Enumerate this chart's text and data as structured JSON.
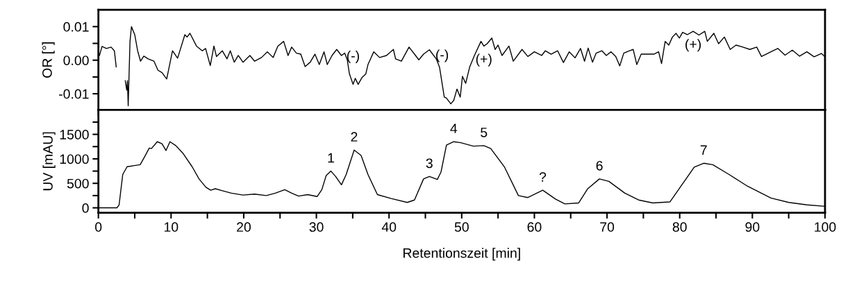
{
  "chart_data": [
    {
      "type": "line",
      "ylabel": "OR [°]",
      "xlim": [
        0,
        100
      ],
      "ylim": [
        -0.0148,
        0.015
      ],
      "xticks": [
        0,
        {
          "value": 5,
          "label": null
        },
        10,
        {
          "value": 15,
          "label": null
        },
        20,
        {
          "value": 25,
          "label": null
        },
        30,
        {
          "value": 35,
          "label": null
        },
        40,
        {
          "value": 45,
          "label": null
        },
        50,
        {
          "value": 55,
          "label": null
        },
        60,
        {
          "value": 65,
          "label": null
        },
        70,
        {
          "value": 75,
          "label": null
        },
        80,
        {
          "value": 85,
          "label": null
        },
        90,
        {
          "value": 95,
          "label": null
        },
        100
      ],
      "yticks": [
        {
          "value": -0.01,
          "label": "-0.01"
        },
        {
          "value": -0.005,
          "label": null
        },
        {
          "value": 0,
          "label": "0.00"
        },
        {
          "value": 0.005,
          "label": null
        },
        0.01
      ],
      "tick_labels": "y",
      "grid": false,
      "marker": "none",
      "line_style": "solid",
      "series": [
        {
          "color": "#000000",
          "x": [
            0.15,
            0.5,
            1.1,
            1.75,
            2.2,
            2.45,
            2.65,
            3.55,
            3.7,
            3.9,
            4.0,
            4.1,
            4.35,
            4.55,
            5.0,
            5.4,
            5.8,
            6.25,
            6.85,
            7.65,
            8.2,
            8.75,
            9.4,
            10.2,
            10.9,
            11.9,
            12.2,
            12.6,
            13.5,
            14.3,
            14.75,
            15.4,
            15.9,
            16.25,
            17.05,
            17.7,
            18.15,
            18.7,
            19.25,
            19.9,
            20.85,
            21.5,
            22.45,
            23.25,
            24.05,
            24.7,
            25.5,
            26.1,
            26.6,
            27.25,
            27.85,
            28.45,
            29.15,
            29.8,
            30.4,
            31.05,
            31.5,
            32.15,
            32.8,
            33.45,
            33.9,
            34.25,
            34.55,
            35.05,
            35.35,
            35.75,
            36.3,
            36.8,
            37.1,
            37.9,
            38.7,
            39.65,
            40.6,
            40.9,
            41.7,
            42.75,
            43.5,
            44.1,
            44.75,
            45.55,
            46.5,
            46.95,
            47.3,
            47.6,
            47.9,
            48.5,
            48.9,
            49.35,
            49.8,
            50.1,
            50.55,
            51.1,
            51.75,
            52.65,
            53.05,
            53.5,
            54.15,
            54.6,
            55.0,
            55.55,
            56.5,
            57.1,
            58.3,
            59.1,
            60.0,
            61.0,
            61.5,
            62.3,
            63.2,
            64.0,
            64.8,
            65.6,
            66.35,
            66.9,
            67.4,
            68.0,
            68.5,
            69.3,
            69.9,
            70.55,
            71.2,
            71.75,
            72.3,
            73.1,
            73.6,
            74.1,
            74.7,
            75.6,
            76.45,
            77.1,
            77.5,
            78.0,
            78.5,
            79.0,
            79.5,
            79.95,
            80.4,
            81.05,
            81.85,
            82.65,
            83.45,
            83.8,
            84.7,
            85.35,
            86.15,
            86.95,
            87.75,
            88.7,
            89.65,
            90.6,
            91.25,
            91.9,
            92.55,
            93.5,
            94.5,
            95.5,
            96.5,
            97.5,
            98.5,
            99.5,
            100
          ],
          "values": [
            0.0014,
            0.0041,
            0.0035,
            0.0039,
            0.0028,
            -0.002,
            null,
            null,
            -0.0061,
            -0.0089,
            -0.0061,
            -0.0136,
            0.0056,
            0.01,
            0.0076,
            0.0028,
            -0.0003,
            0.0012,
            0.0004,
            -0.0003,
            -0.003,
            -0.0037,
            -0.0056,
            0.0028,
            0.0006,
            0.0076,
            0.0069,
            0.008,
            0.0042,
            0.0028,
            0.0035,
            -0.0016,
            0.0042,
            0.0011,
            0.0028,
            0.0004,
            0.0028,
            -0.0006,
            0.0014,
            -0.0006,
            0.0014,
            -0.0003,
            0.0008,
            0.0025,
            0.0008,
            0.0042,
            0.0056,
            0.0014,
            0.0039,
            0.0021,
            0.0018,
            -0.0019,
            -0.0006,
            0.0018,
            -0.0013,
            0.0025,
            -0.0013,
            0.0014,
            0.0032,
            0.0014,
            0.0021,
            0.0001,
            -0.0041,
            -0.0072,
            -0.0054,
            -0.0072,
            -0.0051,
            -0.0041,
            -0.0013,
            0.0025,
            0.0008,
            0.0014,
            0.0032,
            0.0004,
            -0.0003,
            0.0039,
            0.0018,
            0.0001,
            0.0018,
            0.0031,
            0.0004,
            -0.0021,
            -0.0069,
            -0.011,
            -0.0113,
            -0.013,
            -0.012,
            -0.0086,
            -0.011,
            -0.0048,
            -0.0069,
            -0.002,
            0.0014,
            0.0056,
            0.0042,
            0.0049,
            0.0066,
            0.0032,
            0.0045,
            0.0014,
            0.0042,
            -0.0003,
            0.0032,
            0.0011,
            0.0025,
            0.0014,
            0.0028,
            0.0018,
            0.0028,
            -0.0007,
            0.0025,
            0.0007,
            0.0035,
            -0.0003,
            0.0036,
            -0.0006,
            0.0021,
            0.0028,
            0.0014,
            0.0025,
            0.0011,
            -0.0017,
            0.0021,
            0.0028,
            0.0032,
            -0.0013,
            0.0018,
            0.0018,
            0.0018,
            0.0025,
            -0.001,
            0.0056,
            0.0045,
            0.0069,
            0.008,
            0.0066,
            0.0083,
            0.0076,
            0.0086,
            0.0075,
            0.0086,
            0.0056,
            0.008,
            0.0049,
            0.0069,
            0.0032,
            0.0045,
            0.0039,
            0.0032,
            0.0039,
            0.0011,
            0.0018,
            0.0025,
            0.0035,
            0.0015,
            0.003,
            0.0012,
            0.0025,
            0.001,
            0.002,
            0.001
          ]
        }
      ],
      "annotations": [
        {
          "text": "(-)",
          "x": 35.05,
          "y": -0.0072
        },
        {
          "text": "(-)",
          "x": 47.3,
          "y": -0.0069
        },
        {
          "text": "(+)",
          "x": 53.05,
          "y": 0.0042
        },
        {
          "text": "(+)",
          "x": 81.85,
          "y": 0.0086
        }
      ]
    },
    {
      "type": "line",
      "ylabel": "UV [mAU]",
      "xlabel": "Retentionszeit [min]",
      "xlim": [
        0,
        100
      ],
      "ylim": [
        -100,
        2000
      ],
      "xticks": [
        0,
        {
          "value": 5,
          "label": null
        },
        10,
        {
          "value": 15,
          "label": null
        },
        20,
        {
          "value": 25,
          "label": null
        },
        30,
        {
          "value": 35,
          "label": null
        },
        40,
        {
          "value": 45,
          "label": null
        },
        50,
        {
          "value": 55,
          "label": null
        },
        60,
        {
          "value": 65,
          "label": null
        },
        70,
        {
          "value": 75,
          "label": null
        },
        80,
        {
          "value": 85,
          "label": null
        },
        90,
        {
          "value": 95,
          "label": null
        },
        100
      ],
      "yticks": [
        0,
        {
          "value": 250,
          "label": null
        },
        500,
        {
          "value": 750,
          "label": null
        },
        1000,
        {
          "value": 1250,
          "label": null
        },
        1500,
        {
          "value": 1750,
          "label": null
        }
      ],
      "grid": false,
      "marker": "none",
      "line_style": "solid",
      "series": [
        {
          "color": "#000000",
          "x": [
            0,
            2.55,
            2.85,
            3.35,
            3.95,
            4.45,
            4.8,
            5.75,
            6.35,
            7.0,
            7.3,
            8.1,
            8.75,
            9.3,
            9.85,
            10.65,
            11.6,
            12.9,
            13.85,
            14.8,
            15.45,
            16.1,
            17.05,
            18.3,
            19.9,
            21.5,
            23.1,
            24.35,
            25.65,
            26.6,
            27.55,
            28.8,
            30.1,
            30.75,
            31.35,
            32.0,
            32.65,
            33.45,
            34.1,
            35.2,
            36.15,
            37.1,
            38.4,
            40.3,
            42.5,
            43.5,
            44.75,
            45.55,
            46.65,
            47.15,
            47.9,
            48.9,
            49.85,
            51.6,
            53.05,
            54.0,
            55.9,
            57.8,
            59.1,
            61.15,
            62.9,
            64.2,
            66.1,
            67.35,
            68.95,
            70.25,
            72.45,
            74.35,
            76.3,
            78.65,
            80.4,
            82.0,
            83.3,
            84.55,
            86.8,
            89.35,
            92.55,
            95,
            97.5,
            100
          ],
          "values": [
            0,
            0,
            60,
            680,
            840,
            850,
            860,
            880,
            1040,
            1220,
            1210,
            1350,
            1310,
            1170,
            1350,
            1270,
            1120,
            840,
            590,
            420,
            360,
            390,
            350,
            300,
            260,
            280,
            250,
            300,
            370,
            300,
            240,
            270,
            230,
            370,
            660,
            750,
            640,
            470,
            680,
            1180,
            1070,
            680,
            270,
            190,
            110,
            160,
            590,
            640,
            580,
            730,
            1280,
            1350,
            1330,
            1260,
            1270,
            1210,
            830,
            250,
            210,
            360,
            180,
            80,
            100,
            390,
            590,
            540,
            300,
            160,
            100,
            120,
            490,
            830,
            910,
            880,
            680,
            440,
            200,
            110,
            60,
            30
          ]
        }
      ],
      "annotations": [
        {
          "text": "1",
          "x": 32.0,
          "y": 750
        },
        {
          "text": "2",
          "x": 35.2,
          "y": 1180
        },
        {
          "text": "3",
          "x": 45.55,
          "y": 640
        },
        {
          "text": "4",
          "x": 48.9,
          "y": 1350
        },
        {
          "text": "5",
          "x": 53.05,
          "y": 1270
        },
        {
          "text": "?",
          "x": 61.15,
          "y": 360
        },
        {
          "text": "6",
          "x": 68.95,
          "y": 590
        },
        {
          "text": "7",
          "x": 83.3,
          "y": 910
        }
      ]
    }
  ]
}
